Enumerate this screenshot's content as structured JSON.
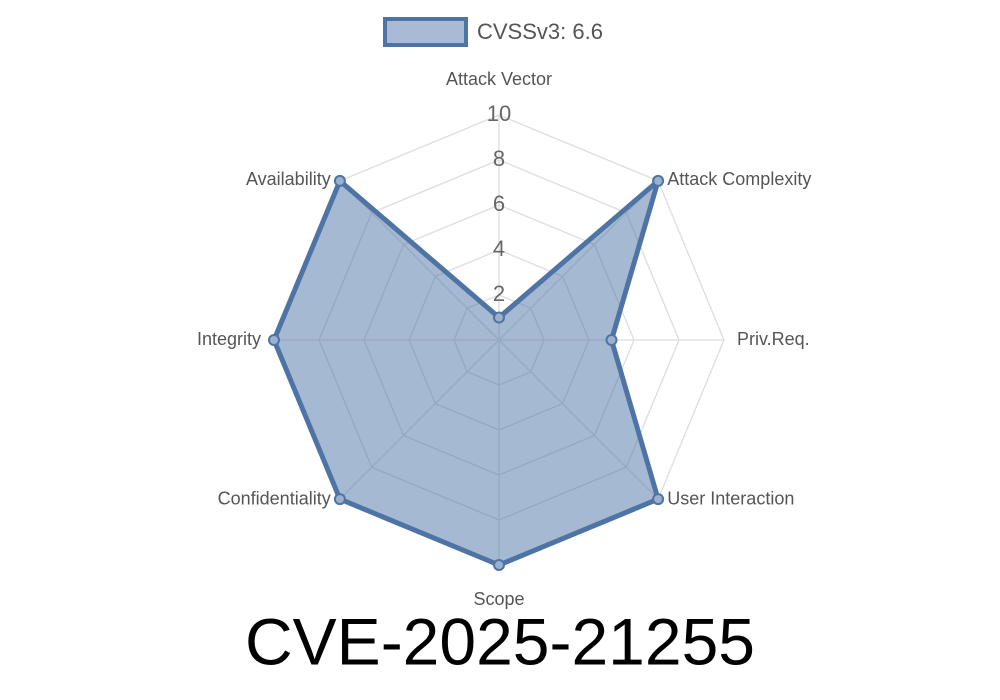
{
  "chart_data": {
    "type": "radar",
    "title": "CVE-2025-21255",
    "categories": [
      "Attack Vector",
      "Attack Complexity",
      "Priv.Req.",
      "User Interaction",
      "Scope",
      "Confidentiality",
      "Integrity",
      "Availability"
    ],
    "series": [
      {
        "name": "CVSSv3: 6.6",
        "color": "#4e74a6",
        "values": [
          1,
          10,
          5,
          10,
          10,
          10,
          10,
          10
        ]
      }
    ],
    "rlim": [
      0,
      10
    ],
    "rticks": [
      2,
      4,
      6,
      8,
      10
    ],
    "grid": true,
    "legend": "top"
  }
}
